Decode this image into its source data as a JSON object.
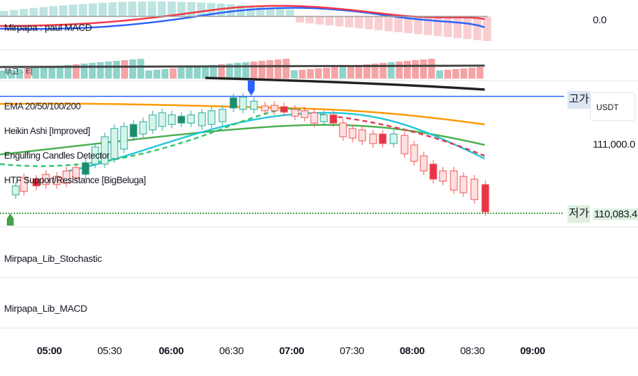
{
  "panes": {
    "macd_top": {
      "label": "Mirpapa : paul MACD",
      "value": "0.0"
    },
    "volume_pane": {
      "label": "부고 · 티"
    },
    "main": {
      "indicators": [
        "EMA 20/50/100/200",
        "Heikin Ashi [Improved]",
        "Engulfing Candles Detector",
        "HTF Support/Resistance [BigBeluga]"
      ],
      "high_tag": "고가",
      "low_tag": "저가",
      "currency": "USDT",
      "price_level": "111,000.0",
      "low_price": "110,083.4"
    },
    "stochastic": {
      "label": "Mirpapa_Lib_Stochastic"
    },
    "macd_lib": {
      "label": "Mirpapa_Lib_MACD"
    }
  },
  "time_axis": [
    {
      "label": "05:00",
      "bold": true
    },
    {
      "label": "05:30",
      "bold": false
    },
    {
      "label": "06:00",
      "bold": true
    },
    {
      "label": "06:30",
      "bold": false
    },
    {
      "label": "07:00",
      "bold": true
    },
    {
      "label": "07:30",
      "bold": false
    },
    {
      "label": "08:00",
      "bold": true
    },
    {
      "label": "08:30",
      "bold": false
    },
    {
      "label": "09:00",
      "bold": true
    }
  ],
  "colors": {
    "up": "#26a69a",
    "down": "#ef5350",
    "ema_orange": "#ff9800",
    "ema_cyan": "#26c6da",
    "ema_green": "#4caf50",
    "macd_blue": "#2962ff",
    "macd_red": "#f23645",
    "high_line": "#2962ff",
    "low_line": "#43a047"
  }
}
